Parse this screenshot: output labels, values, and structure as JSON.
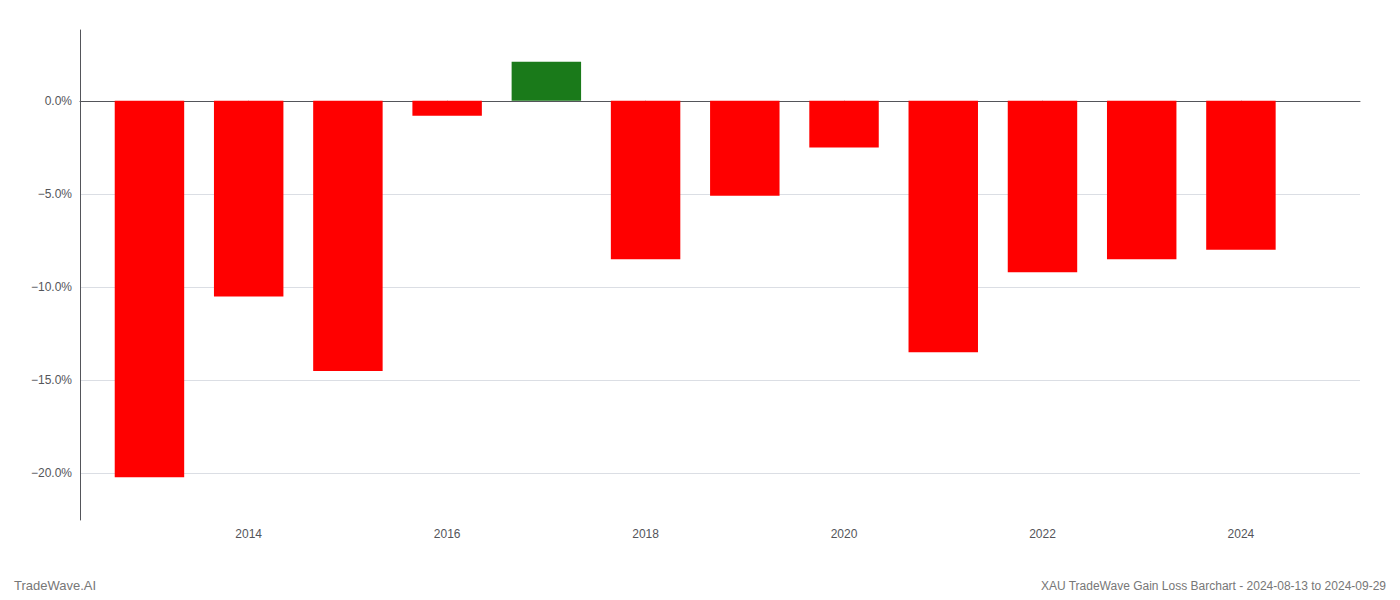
{
  "chart_data": {
    "type": "bar",
    "x": [
      2013,
      2014,
      2015,
      2016,
      2017,
      2018,
      2019,
      2020,
      2021,
      2022,
      2023,
      2024
    ],
    "values": [
      -20.2,
      -10.5,
      -14.5,
      -0.8,
      2.1,
      -8.5,
      -5.1,
      -2.5,
      -13.5,
      -9.2,
      -8.5,
      -8.0
    ],
    "colors": [
      "#ff0000",
      "#ff0000",
      "#ff0000",
      "#ff0000",
      "#1a7a1a",
      "#ff0000",
      "#ff0000",
      "#ff0000",
      "#ff0000",
      "#ff0000",
      "#ff0000",
      "#ff0000"
    ],
    "xlim": [
      2012.3,
      2025.2
    ],
    "xticks": [
      2014,
      2016,
      2018,
      2020,
      2022,
      2024
    ],
    "ylim": [
      -22.5,
      3.8
    ],
    "yticks": [
      {
        "value": 0.0,
        "label": "0.0%"
      },
      {
        "value": -5.0,
        "label": "−5.0%"
      },
      {
        "value": -10.0,
        "label": "−10.0%"
      },
      {
        "value": -15.0,
        "label": "−15.0%"
      },
      {
        "value": -20.0,
        "label": "−20.0%"
      }
    ],
    "annotations": [
      "TradeWave.AI",
      "XAU TradeWave Gain Loss Barchart - 2024-08-13 to 2024-09-29"
    ],
    "grid": true
  }
}
